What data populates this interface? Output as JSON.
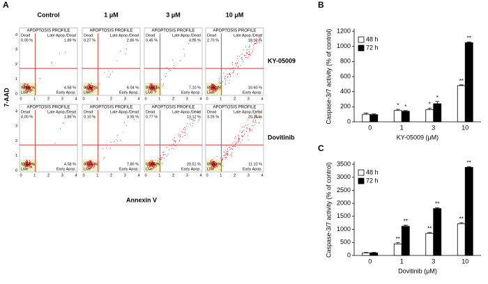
{
  "panel_labels": [
    "A",
    "B",
    "C"
  ],
  "flow": {
    "title": "APOPTOSIS PROFILE",
    "quadrants": {
      "ul": "Dead",
      "ur": "Late Apop./Dead",
      "ll": "Live",
      "lr": "Early Apop."
    },
    "ticks": [
      "0",
      "1",
      "2",
      "3",
      "4"
    ],
    "columns": [
      "Control",
      "1 μM",
      "3 μM",
      "10 μM"
    ],
    "ylabel": "7-AAD",
    "xlabel": "Annexin V",
    "rows": [
      {
        "label": "KY-05009",
        "plots": [
          {
            "ul": "0.00 %",
            "ur": "1.89 %",
            "ll": "93.53 %",
            "lr": "4.58 %"
          },
          {
            "ul": "0.27 %",
            "ur": "2.86 %",
            "ll": "90.83 %",
            "lr": "6.04 %"
          },
          {
            "ul": "0.45 %",
            "ur": "3.05 %",
            "ll": "89.40 %",
            "lr": "7.10 %"
          },
          {
            "ul": "2.70 %",
            "ur": "18.10 %",
            "ll": "68.60 %",
            "lr": "10.60 %"
          }
        ]
      },
      {
        "label": "Dovitinib",
        "plots": [
          {
            "ul": "0.00 %",
            "ur": "1.89 %",
            "ll": "93.53 %",
            "lr": "4.58 %"
          },
          {
            "ul": "0.10 %",
            "ur": "3.35 %",
            "ll": "88.75 %",
            "lr": "7.80 %"
          },
          {
            "ul": "0.77 %",
            "ur": "13.12 %",
            "ll": "65.60 %",
            "lr": "20.51 %"
          },
          {
            "ul": "3.25 %",
            "ur": "20.35 %",
            "ll": "65.30 %",
            "lr": "11.10 %"
          }
        ]
      }
    ]
  },
  "chart_data": [
    {
      "type": "bar",
      "ylabel": "Caspase-3/7 activity (% of control)",
      "xlabel": "KY-05009 (μM)",
      "categories": [
        "0",
        "1",
        "3",
        "10"
      ],
      "ylim": [
        0,
        1200
      ],
      "yticks": [
        0,
        200,
        400,
        600,
        800,
        1000,
        1200
      ],
      "legend": "upper left",
      "series": [
        {
          "name": "48 h",
          "color": "#ffffff",
          "values": [
            100,
            150,
            160,
            480
          ],
          "errors": [
            15,
            15,
            20,
            10
          ],
          "annotations": [
            null,
            "*",
            "*",
            "**"
          ]
        },
        {
          "name": "72 h",
          "color": "#000000",
          "values": [
            95,
            140,
            240,
            1050
          ],
          "errors": [
            10,
            10,
            30,
            10
          ],
          "annotations": [
            null,
            "*",
            "*",
            "**"
          ]
        }
      ]
    },
    {
      "type": "bar",
      "ylabel": "Caspase-3/7 activity (% of control)",
      "xlabel": "Dovitinib (μM)",
      "categories": [
        "0",
        "1",
        "3",
        "10"
      ],
      "ylim": [
        0,
        3500
      ],
      "yticks": [
        0,
        500,
        1000,
        1500,
        2000,
        2500,
        3000,
        3500
      ],
      "legend": "upper left",
      "series": [
        {
          "name": "48 h",
          "color": "#ffffff",
          "values": [
            100,
            440,
            850,
            1220
          ],
          "errors": [
            20,
            50,
            30,
            40
          ],
          "annotations": [
            null,
            "**",
            "**",
            "**"
          ]
        },
        {
          "name": "72 h",
          "color": "#000000",
          "values": [
            100,
            1120,
            1800,
            3380
          ],
          "errors": [
            20,
            40,
            30,
            30
          ],
          "annotations": [
            null,
            "**",
            "**",
            "**"
          ]
        }
      ]
    }
  ]
}
